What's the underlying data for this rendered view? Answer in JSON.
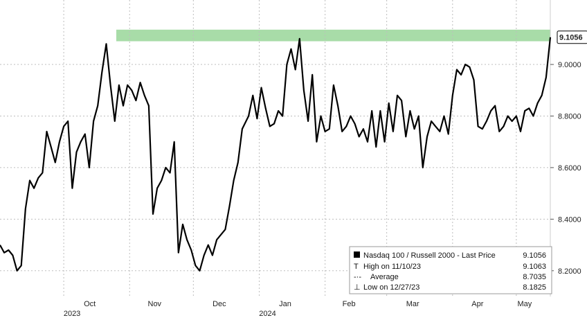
{
  "chart_data": {
    "type": "line",
    "title": "",
    "xlabel": "",
    "ylabel": "",
    "ylim": [
      8.1,
      9.25
    ],
    "y_ticks": [
      "8.2000",
      "8.4000",
      "8.6000",
      "8.8000",
      "9.0000"
    ],
    "y_tick_values": [
      8.2,
      8.4,
      8.6,
      8.8,
      9.0
    ],
    "x_ticks": [
      "Oct",
      "Nov",
      "Dec",
      "Jan",
      "Feb",
      "Mar",
      "Apr",
      "May"
    ],
    "x_tick_dates": [
      "2023-10-01",
      "2023-11-01",
      "2023-12-01",
      "2024-01-01",
      "2024-02-01",
      "2024-03-01",
      "2024-04-01",
      "2024-05-01"
    ],
    "year_labels": [
      {
        "label": "2023",
        "date": "2023-10-01"
      },
      {
        "label": "2024",
        "date": "2024-01-01"
      }
    ],
    "xlim": [
      "2023-09-01",
      "2024-05-17"
    ],
    "grid": true,
    "last_value_label": "9.1056",
    "highlight_band": {
      "from": 9.09,
      "to": 9.135,
      "color": "#a8dca8"
    },
    "line_color": "#000000",
    "series": [
      {
        "name": "Nasdaq 100 / Russell 2000 - Last Price",
        "x": [
          "2023-09-01",
          "2023-09-03",
          "2023-09-05",
          "2023-09-07",
          "2023-09-09",
          "2023-09-11",
          "2023-09-13",
          "2023-09-15",
          "2023-09-17",
          "2023-09-19",
          "2023-09-21",
          "2023-09-23",
          "2023-09-25",
          "2023-09-27",
          "2023-09-29",
          "2023-10-01",
          "2023-10-03",
          "2023-10-05",
          "2023-10-07",
          "2023-10-09",
          "2023-10-11",
          "2023-10-13",
          "2023-10-15",
          "2023-10-17",
          "2023-10-19",
          "2023-10-21",
          "2023-10-23",
          "2023-10-25",
          "2023-10-27",
          "2023-10-29",
          "2023-10-31",
          "2023-11-02",
          "2023-11-04",
          "2023-11-06",
          "2023-11-08",
          "2023-11-10",
          "2023-11-12",
          "2023-11-14",
          "2023-11-16",
          "2023-11-18",
          "2023-11-20",
          "2023-11-22",
          "2023-11-24",
          "2023-11-26",
          "2023-11-28",
          "2023-11-30",
          "2023-12-02",
          "2023-12-04",
          "2023-12-06",
          "2023-12-08",
          "2023-12-10",
          "2023-12-12",
          "2023-12-14",
          "2023-12-16",
          "2023-12-18",
          "2023-12-20",
          "2023-12-22",
          "2023-12-24",
          "2023-12-27",
          "2023-12-29",
          "2023-12-31",
          "2024-01-02",
          "2024-01-04",
          "2024-01-06",
          "2024-01-08",
          "2024-01-10",
          "2024-01-12",
          "2024-01-14",
          "2024-01-16",
          "2024-01-18",
          "2024-01-20",
          "2024-01-22",
          "2024-01-24",
          "2024-01-26",
          "2024-01-28",
          "2024-01-30",
          "2024-02-01",
          "2024-02-03",
          "2024-02-05",
          "2024-02-07",
          "2024-02-09",
          "2024-02-11",
          "2024-02-13",
          "2024-02-15",
          "2024-02-17",
          "2024-02-19",
          "2024-02-21",
          "2024-02-23",
          "2024-02-25",
          "2024-02-27",
          "2024-02-29",
          "2024-03-02",
          "2024-03-04",
          "2024-03-06",
          "2024-03-08",
          "2024-03-10",
          "2024-03-12",
          "2024-03-14",
          "2024-03-16",
          "2024-03-18",
          "2024-03-20",
          "2024-03-22",
          "2024-03-24",
          "2024-03-26",
          "2024-03-28",
          "2024-03-30",
          "2024-04-01",
          "2024-04-03",
          "2024-04-05",
          "2024-04-07",
          "2024-04-09",
          "2024-04-11",
          "2024-04-13",
          "2024-04-15",
          "2024-04-17",
          "2024-04-19",
          "2024-04-21",
          "2024-04-23",
          "2024-04-25",
          "2024-04-27",
          "2024-04-29",
          "2024-05-01",
          "2024-05-03",
          "2024-05-05",
          "2024-05-07",
          "2024-05-09",
          "2024-05-11",
          "2024-05-13",
          "2024-05-15",
          "2024-05-17"
        ],
        "values": [
          8.3,
          8.27,
          8.28,
          8.26,
          8.2,
          8.22,
          8.44,
          8.55,
          8.52,
          8.56,
          8.58,
          8.74,
          8.68,
          8.62,
          8.7,
          8.76,
          8.78,
          8.52,
          8.66,
          8.7,
          8.73,
          8.6,
          8.78,
          8.84,
          8.97,
          9.08,
          8.92,
          8.78,
          8.92,
          8.84,
          8.92,
          8.9,
          8.86,
          8.93,
          8.88,
          8.84,
          8.42,
          8.52,
          8.55,
          8.6,
          8.58,
          8.7,
          8.27,
          8.38,
          8.32,
          8.28,
          8.22,
          8.2,
          8.26,
          8.3,
          8.26,
          8.32,
          8.34,
          8.36,
          8.45,
          8.55,
          8.62,
          8.75,
          8.8,
          8.88,
          8.79,
          8.91,
          8.83,
          8.76,
          8.77,
          8.82,
          8.8,
          9.0,
          9.06,
          8.98,
          9.1,
          8.9,
          8.78,
          8.96,
          8.7,
          8.8,
          8.74,
          8.75,
          8.92,
          8.84,
          8.74,
          8.76,
          8.8,
          8.77,
          8.72,
          8.75,
          8.7,
          8.82,
          8.68,
          8.82,
          8.7,
          8.85,
          8.74,
          8.88,
          8.86,
          8.72,
          8.82,
          8.75,
          8.8,
          8.6,
          8.72,
          8.78,
          8.76,
          8.74,
          8.8,
          8.73,
          8.88,
          8.98,
          8.96,
          9.0,
          8.99,
          8.94,
          8.76,
          8.75,
          8.78,
          8.82,
          8.84,
          8.74,
          8.76,
          8.8,
          8.78,
          8.8,
          8.74,
          8.82,
          8.83,
          8.8,
          8.85,
          8.88,
          8.95,
          9.1056
        ]
      }
    ],
    "legend": {
      "placement": "bottom-right",
      "entries": [
        {
          "marker": "square",
          "label": "Nasdaq 100 / Russell 2000 - Last Price",
          "value": "9.1056"
        },
        {
          "marker": "high",
          "label": "High on 11/10/23",
          "value": "9.1063"
        },
        {
          "marker": "average",
          "label": "Average",
          "value": "8.7035"
        },
        {
          "marker": "low",
          "label": "Low on 12/27/23",
          "value": "8.1825"
        }
      ]
    }
  }
}
